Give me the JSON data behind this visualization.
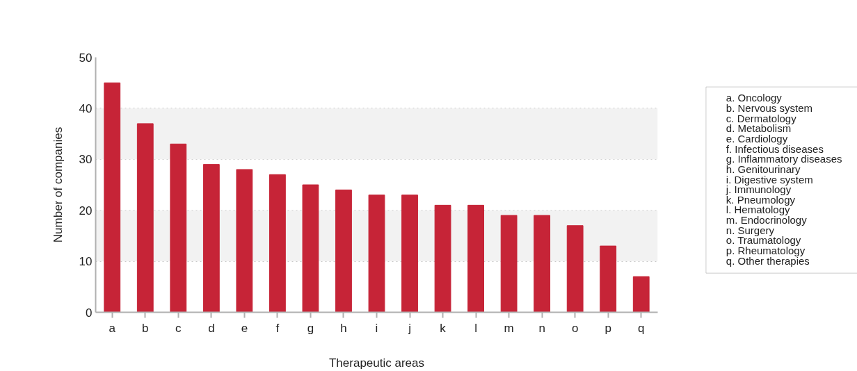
{
  "chart_data": {
    "type": "bar",
    "xlabel": "Therapeutic areas",
    "ylabel": "Number of companies",
    "categories": [
      "a",
      "b",
      "c",
      "d",
      "e",
      "f",
      "g",
      "h",
      "i",
      "j",
      "k",
      "l",
      "m",
      "n",
      "o",
      "p",
      "q"
    ],
    "values": [
      45,
      37,
      33,
      29,
      28,
      27,
      25,
      24,
      23,
      23,
      21,
      21,
      19,
      19,
      17,
      13,
      7
    ],
    "color": "#c62437",
    "ylim": [
      0,
      50
    ],
    "yticks": [
      0,
      10,
      20,
      30,
      40,
      50
    ],
    "grid": "y",
    "bands": [
      {
        "axis": "y",
        "from": 10,
        "to": 20,
        "color": "#f2f2f2"
      },
      {
        "axis": "y",
        "from": 30,
        "to": 40,
        "color": "#f2f2f2"
      }
    ],
    "annotations": [
      "a. Oncology",
      "b. Nervous system",
      "c. Dermatology",
      "d. Metabolism",
      "e. Cardiology",
      "f. Infectious diseases",
      "g. Inflammatory diseases",
      "h. Genitourinary",
      "i. Digestive system",
      "j. Immunology",
      "k. Pneumology",
      "l. Hematology",
      "m. Endocrinology",
      "n. Surgery",
      "o. Traumatology",
      "p. Rheumatology",
      "q. Other therapies"
    ]
  }
}
